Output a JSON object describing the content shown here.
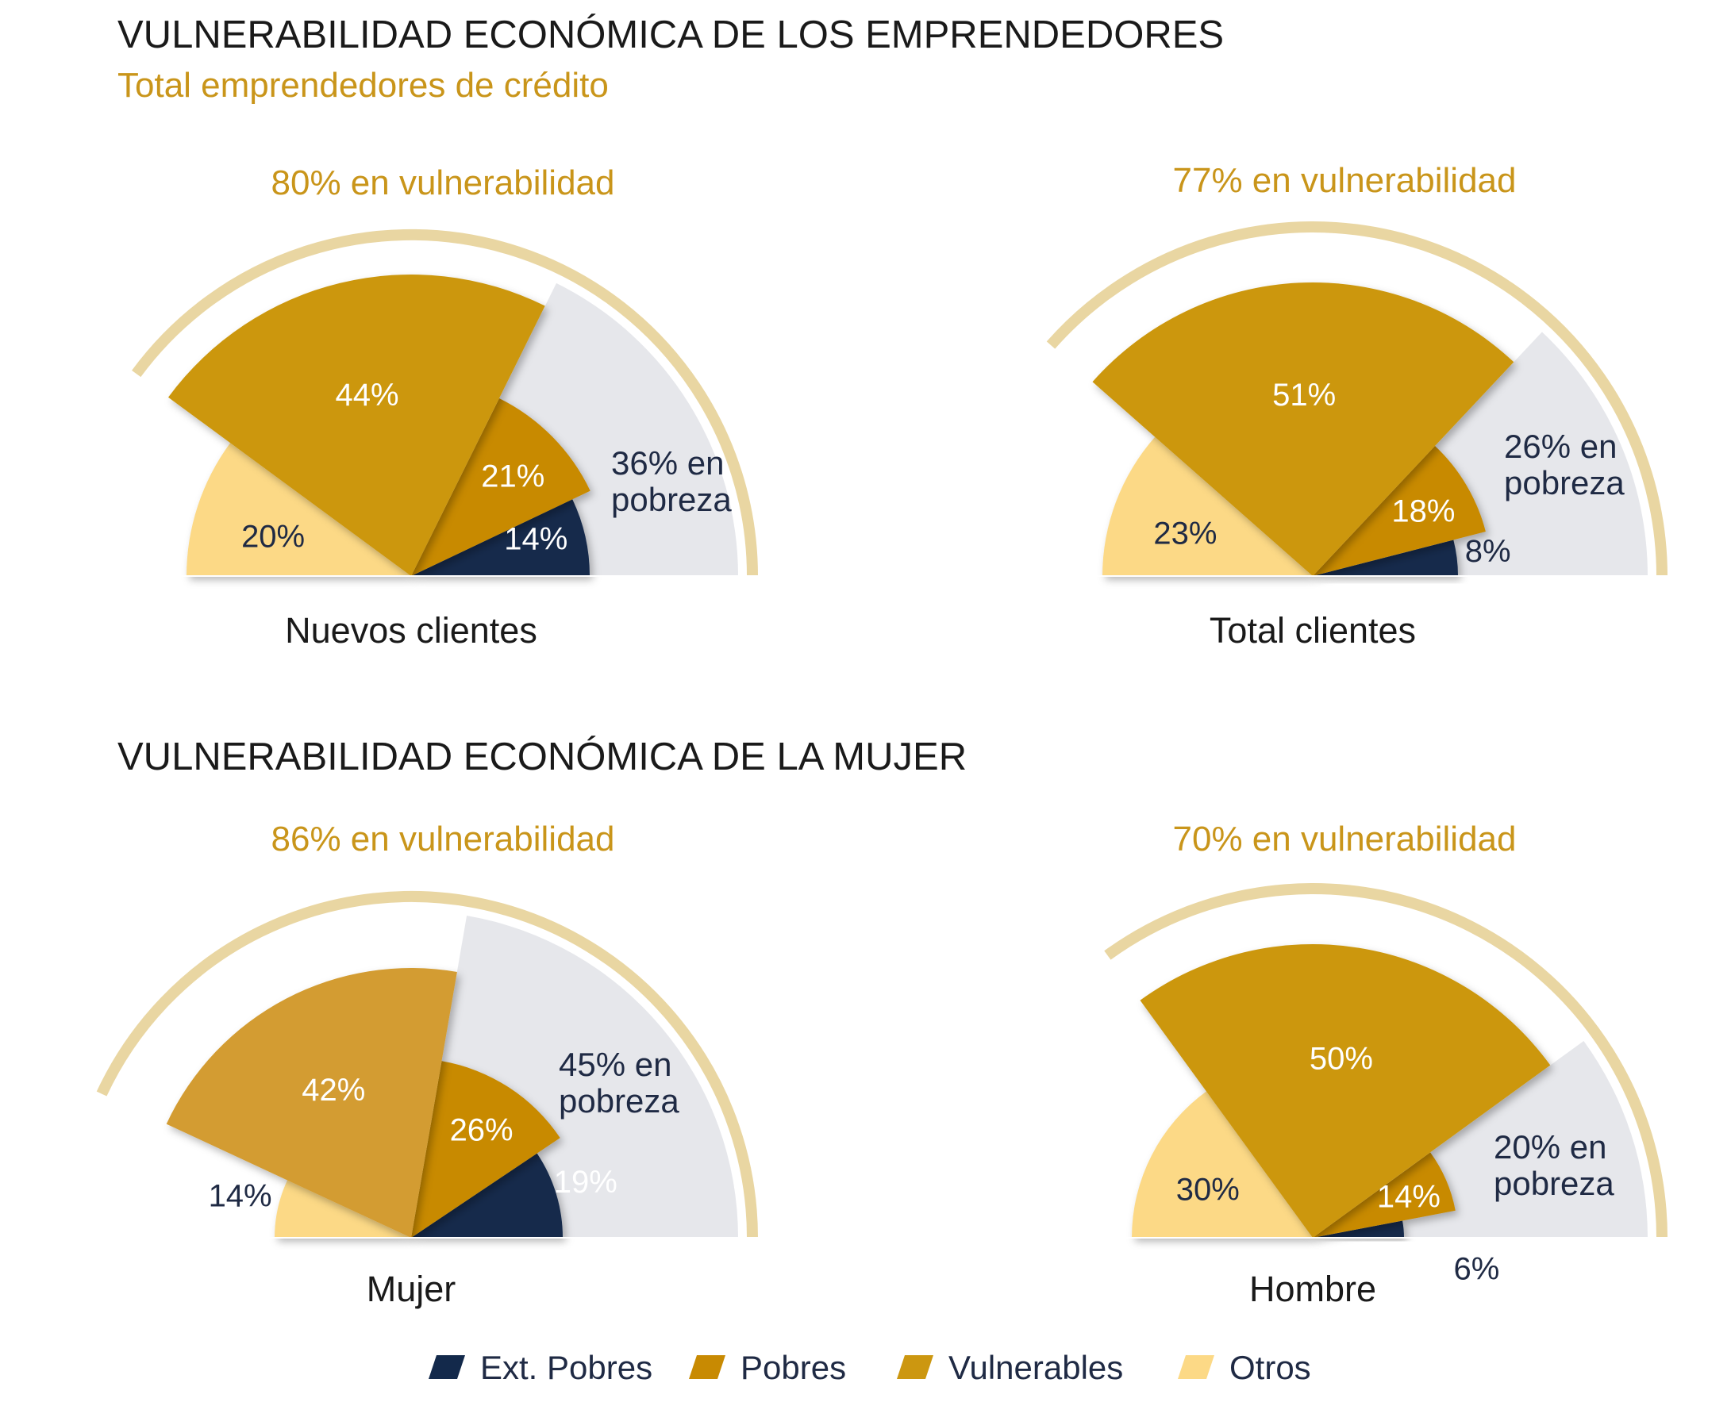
{
  "colors": {
    "ext_pobres": "#13294b",
    "pobres": "#c88a02",
    "vulnerables": "#cc9710",
    "vulnerables_alt": "#d39c30",
    "otros": "#fcd986",
    "pobreza_band": "#e6e7eb",
    "arc": "#e9d6a2",
    "title": "#1a1a1a",
    "subtitle": "#c9951a",
    "dark_text": "#1f2a44"
  },
  "section1": {
    "title": "VULNERABILIDAD ECONÓMICA DE LOS EMPRENDEDORES",
    "subtitle": "Total emprendedores de crédito"
  },
  "section2": {
    "title": "VULNERABILIDAD ECONÓMICA DE LA MUJER"
  },
  "legend": [
    {
      "key": "ext_pobres",
      "label": "Ext. Pobres",
      "icon": "parallelogram-swatch"
    },
    {
      "key": "pobres",
      "label": "Pobres",
      "icon": "parallelogram-swatch"
    },
    {
      "key": "vulnerables",
      "label": "Vulnerables",
      "icon": "parallelogram-swatch"
    },
    {
      "key": "otros",
      "label": "Otros",
      "icon": "parallelogram-swatch"
    }
  ],
  "chart_data": [
    {
      "type": "pie",
      "name": "Nuevos clientes",
      "header": "80% en vulnerabilidad",
      "pobreza_label": [
        "36% en",
        "pobreza"
      ],
      "slices": [
        {
          "key": "ext_pobres",
          "label": "Ext. Pobres",
          "value": 14,
          "value_label": "14%"
        },
        {
          "key": "pobres",
          "label": "Pobres",
          "value": 21,
          "value_label": "21%"
        },
        {
          "key": "vulnerables",
          "label": "Vulnerables",
          "value": 44,
          "value_label": "44%"
        },
        {
          "key": "otros",
          "label": "Otros",
          "value": 20,
          "value_label": "20%"
        }
      ]
    },
    {
      "type": "pie",
      "name": "Total clientes",
      "header": "77%  en vulnerabilidad",
      "pobreza_label": [
        "26% en",
        "pobreza"
      ],
      "slices": [
        {
          "key": "ext_pobres",
          "label": "Ext. Pobres",
          "value": 8,
          "value_label": "8%"
        },
        {
          "key": "pobres",
          "label": "Pobres",
          "value": 18,
          "value_label": "18%"
        },
        {
          "key": "vulnerables",
          "label": "Vulnerables",
          "value": 51,
          "value_label": "51%"
        },
        {
          "key": "otros",
          "label": "Otros",
          "value": 23,
          "value_label": "23%"
        }
      ]
    },
    {
      "type": "pie",
      "name": "Mujer",
      "header": "86%  en vulnerabilidad",
      "pobreza_label": [
        "45% en",
        "pobreza"
      ],
      "slices": [
        {
          "key": "ext_pobres",
          "label": "Ext. Pobres",
          "value": 19,
          "value_label": "19%"
        },
        {
          "key": "pobres",
          "label": "Pobres",
          "value": 26,
          "value_label": "26%"
        },
        {
          "key": "vulnerables",
          "label": "Vulnerables",
          "value": 42,
          "value_label": "42%"
        },
        {
          "key": "otros",
          "label": "Otros",
          "value": 14,
          "value_label": "14%"
        }
      ]
    },
    {
      "type": "pie",
      "name": "Hombre",
      "header": "70%  en vulnerabilidad",
      "pobreza_label": [
        "20% en",
        "pobreza"
      ],
      "slices": [
        {
          "key": "ext_pobres",
          "label": "Ext. Pobres",
          "value": 6,
          "value_label": "6%"
        },
        {
          "key": "pobres",
          "label": "Pobres",
          "value": 14,
          "value_label": "14%"
        },
        {
          "key": "vulnerables",
          "label": "Vulnerables",
          "value": 50,
          "value_label": "50%"
        },
        {
          "key": "otros",
          "label": "Otros",
          "value": 30,
          "value_label": "30%"
        }
      ]
    }
  ]
}
